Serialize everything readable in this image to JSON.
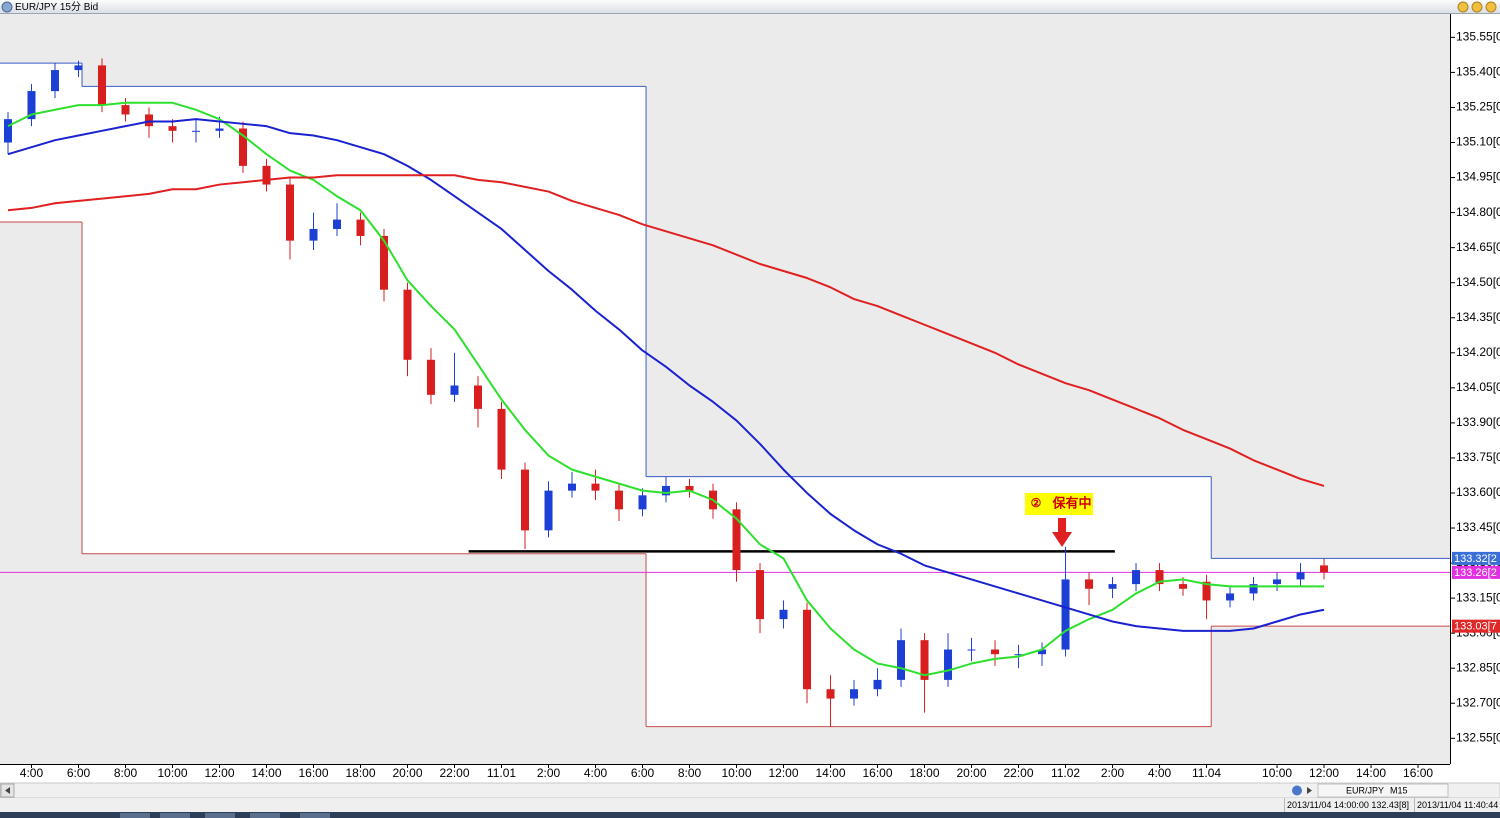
{
  "chart_data": {
    "type": "candlestick",
    "title": "EUR/JPY 15分 Bid",
    "categories": [
      null,
      "4:00",
      null,
      "6:00",
      null,
      "8:00",
      null,
      "10:00",
      null,
      "12:00",
      null,
      "14:00",
      null,
      "16:00",
      null,
      "18:00",
      null,
      "20:00",
      null,
      "22:00",
      null,
      "11.01",
      null,
      "2:00",
      null,
      "4:00",
      null,
      "6:00",
      null,
      "8:00",
      null,
      "10:00",
      null,
      "12:00",
      null,
      "14:00",
      null,
      "16:00",
      null,
      "18:00",
      null,
      "20:00",
      null,
      "22:00",
      null,
      "11.02",
      null,
      "2:00",
      null,
      "4:00",
      null,
      "11.04",
      null,
      null,
      "10:00",
      null,
      "12:00",
      null,
      "14:00",
      null,
      "16:00"
    ],
    "open": [
      135.1,
      135.2,
      135.32,
      135.41,
      135.43,
      135.26,
      135.22,
      135.17,
      135.15,
      135.15,
      135.16,
      135.0,
      134.92,
      134.68,
      134.73,
      134.77,
      134.7,
      134.47,
      134.17,
      134.02,
      134.06,
      133.96,
      133.7,
      133.44,
      133.61,
      133.64,
      133.61,
      133.53,
      133.59,
      133.63,
      133.61,
      133.53,
      133.27,
      133.06,
      133.1,
      132.76,
      132.72,
      132.76,
      132.8,
      132.97,
      132.8,
      132.93,
      132.93,
      132.91,
      132.91,
      132.93,
      133.23,
      133.19,
      133.21,
      133.27,
      133.21,
      133.22,
      133.14,
      133.17,
      133.21,
      133.23,
      133.29,
      null,
      null,
      null,
      null
    ],
    "high": [
      135.23,
      135.35,
      135.44,
      135.45,
      135.46,
      135.29,
      135.25,
      135.2,
      135.2,
      135.21,
      135.19,
      135.03,
      134.95,
      134.8,
      134.84,
      134.8,
      134.73,
      134.5,
      134.22,
      134.2,
      134.1,
      133.99,
      133.73,
      133.65,
      133.69,
      133.7,
      133.64,
      133.62,
      133.67,
      133.66,
      133.64,
      133.56,
      133.3,
      133.14,
      133.13,
      132.82,
      132.8,
      132.85,
      133.02,
      133.0,
      133.0,
      132.98,
      132.97,
      132.95,
      132.96,
      133.37,
      133.26,
      133.24,
      133.3,
      133.3,
      133.24,
      133.25,
      133.2,
      133.24,
      133.26,
      133.3,
      133.32,
      null,
      null,
      null,
      null
    ],
    "low": [
      135.05,
      135.17,
      135.29,
      135.38,
      135.23,
      135.19,
      135.12,
      135.1,
      135.1,
      135.12,
      134.97,
      134.89,
      134.6,
      134.64,
      134.7,
      134.66,
      134.42,
      134.1,
      133.98,
      133.99,
      133.88,
      133.66,
      133.36,
      133.41,
      133.58,
      133.57,
      133.48,
      133.5,
      133.56,
      133.58,
      133.49,
      133.22,
      133.0,
      133.02,
      132.7,
      132.6,
      132.69,
      132.73,
      132.77,
      132.66,
      132.77,
      132.88,
      132.86,
      132.85,
      132.86,
      132.9,
      133.12,
      133.15,
      133.18,
      133.18,
      133.16,
      133.06,
      133.11,
      133.14,
      133.18,
      133.2,
      133.23,
      null,
      null,
      null,
      null
    ],
    "close": [
      135.2,
      135.32,
      135.41,
      135.43,
      135.26,
      135.22,
      135.17,
      135.15,
      135.15,
      135.16,
      135.0,
      134.92,
      134.68,
      134.73,
      134.77,
      134.7,
      134.47,
      134.17,
      134.02,
      134.06,
      133.96,
      133.7,
      133.44,
      133.61,
      133.64,
      133.61,
      133.53,
      133.59,
      133.63,
      133.61,
      133.53,
      133.27,
      133.06,
      133.1,
      132.76,
      132.72,
      132.76,
      132.8,
      132.97,
      132.8,
      132.93,
      132.93,
      132.91,
      132.91,
      132.93,
      133.23,
      133.19,
      133.21,
      133.27,
      133.21,
      133.19,
      133.14,
      133.17,
      133.21,
      133.23,
      133.26,
      133.26,
      null,
      null,
      null,
      null
    ],
    "up_color": "#1c3fd6",
    "down_color": "#d81e1e",
    "series": [
      {
        "color": "#2ee02e",
        "values": [
          135.17,
          135.22,
          135.24,
          135.26,
          135.26,
          135.27,
          135.27,
          135.27,
          135.24,
          135.2,
          135.13,
          135.05,
          134.98,
          134.94,
          134.87,
          134.81,
          134.68,
          134.51,
          134.4,
          134.3,
          134.15,
          134.0,
          133.87,
          133.76,
          133.7,
          133.67,
          133.64,
          133.61,
          133.6,
          133.61,
          133.57,
          133.49,
          133.38,
          133.32,
          133.14,
          133.02,
          132.93,
          132.87,
          132.85,
          132.82,
          132.84,
          132.87,
          132.89,
          132.9,
          132.93,
          133.01,
          133.06,
          133.1,
          133.17,
          133.22,
          133.23,
          133.21,
          133.2,
          133.2,
          133.2,
          133.2,
          133.2,
          null,
          null,
          null,
          null
        ]
      },
      {
        "color": "#1a22d0",
        "values": [
          135.05,
          135.08,
          135.11,
          135.13,
          135.15,
          135.17,
          135.19,
          135.19,
          135.2,
          135.19,
          135.18,
          135.17,
          135.14,
          135.13,
          135.11,
          135.08,
          135.05,
          135.0,
          134.94,
          134.87,
          134.8,
          134.73,
          134.64,
          134.55,
          134.47,
          134.38,
          134.3,
          134.21,
          134.14,
          134.06,
          133.99,
          133.91,
          133.81,
          133.7,
          133.6,
          133.51,
          133.44,
          133.38,
          133.34,
          133.29,
          133.26,
          133.23,
          133.2,
          133.17,
          133.14,
          133.11,
          133.08,
          133.05,
          133.03,
          133.02,
          133.01,
          133.01,
          133.01,
          133.02,
          133.05,
          133.08,
          133.1,
          null,
          null,
          null,
          null
        ]
      },
      {
        "color": "#e02020",
        "values": [
          134.81,
          134.82,
          134.84,
          134.85,
          134.86,
          134.87,
          134.88,
          134.9,
          134.9,
          134.92,
          134.93,
          134.94,
          134.95,
          134.95,
          134.96,
          134.96,
          134.96,
          134.96,
          134.96,
          134.96,
          134.94,
          134.93,
          134.91,
          134.89,
          134.85,
          134.82,
          134.79,
          134.75,
          134.72,
          134.69,
          134.66,
          134.62,
          134.58,
          134.55,
          134.52,
          134.48,
          134.43,
          134.4,
          134.36,
          134.32,
          134.28,
          134.24,
          134.2,
          134.15,
          134.11,
          134.07,
          134.04,
          134.0,
          133.96,
          133.92,
          133.87,
          133.83,
          133.79,
          133.74,
          133.7,
          133.66,
          133.63,
          null,
          null,
          null,
          null
        ]
      }
    ],
    "day_ranges": [
      {
        "from": -0.34,
        "to": 3.15,
        "high": 135.44,
        "low": 134.76
      },
      {
        "from": 3.15,
        "to": 27.15,
        "high": 135.34,
        "low": 133.34
      },
      {
        "from": 27.15,
        "to": 51.2,
        "high": 133.67,
        "low": 132.6
      },
      {
        "from": 51.2,
        "to": 61.36,
        "high": 133.32,
        "low": 133.03
      }
    ],
    "high_color": "#3a5bc8",
    "low_color": "#c84a4a",
    "support_line": {
      "value": 133.35,
      "from": 19.6,
      "to": 47.1,
      "color": "#000000"
    },
    "price_tags": [
      {
        "value": 133.32,
        "label": "133.32[2",
        "color": "#3a6fd8",
        "line": false
      },
      {
        "value": 133.26,
        "label": "133.26[2",
        "color": "#e030e0",
        "line": true
      },
      {
        "value": 133.03,
        "label": "133.03[7",
        "color": "#e02828",
        "line": false
      }
    ],
    "annotation": {
      "marker": "②",
      "text": "保有中"
    },
    "xlim": [
      -0.34,
      61.36
    ],
    "ylim": [
      132.44,
      135.65
    ],
    "yticks": [
      {
        "value": 135.55,
        "label": "135.55[0"
      },
      {
        "value": 135.4,
        "label": "135.40[0"
      },
      {
        "value": 135.25,
        "label": "135.25[0"
      },
      {
        "value": 135.1,
        "label": "135.10[0"
      },
      {
        "value": 134.95,
        "label": "134.95[0"
      },
      {
        "value": 134.8,
        "label": "134.80[0"
      },
      {
        "value": 134.65,
        "label": "134.65[0"
      },
      {
        "value": 134.5,
        "label": "134.50[0"
      },
      {
        "value": 134.35,
        "label": "134.35[0"
      },
      {
        "value": 134.2,
        "label": "134.20[0"
      },
      {
        "value": 134.05,
        "label": "134.05[0"
      },
      {
        "value": 133.9,
        "label": "133.90[0"
      },
      {
        "value": 133.75,
        "label": "133.75[0"
      },
      {
        "value": 133.6,
        "label": "133.60[0"
      },
      {
        "value": 133.45,
        "label": "133.45[0"
      },
      {
        "value": 133.3,
        "label": "133.30[0"
      },
      {
        "value": 133.15,
        "label": "133.15[0"
      },
      {
        "value": 133.0,
        "label": "133.00[0"
      },
      {
        "value": 132.85,
        "label": "132.85[0"
      },
      {
        "value": 132.7,
        "label": "132.70[0"
      },
      {
        "value": 132.55,
        "label": "132.55[0"
      }
    ],
    "grid": false
  },
  "status": {
    "symbol": "EUR/JPY",
    "timeframe": "M15",
    "cursor": "2013/11/04 14:00:00  132.43[8]",
    "clock": "2013/11/04 11:40:44"
  }
}
